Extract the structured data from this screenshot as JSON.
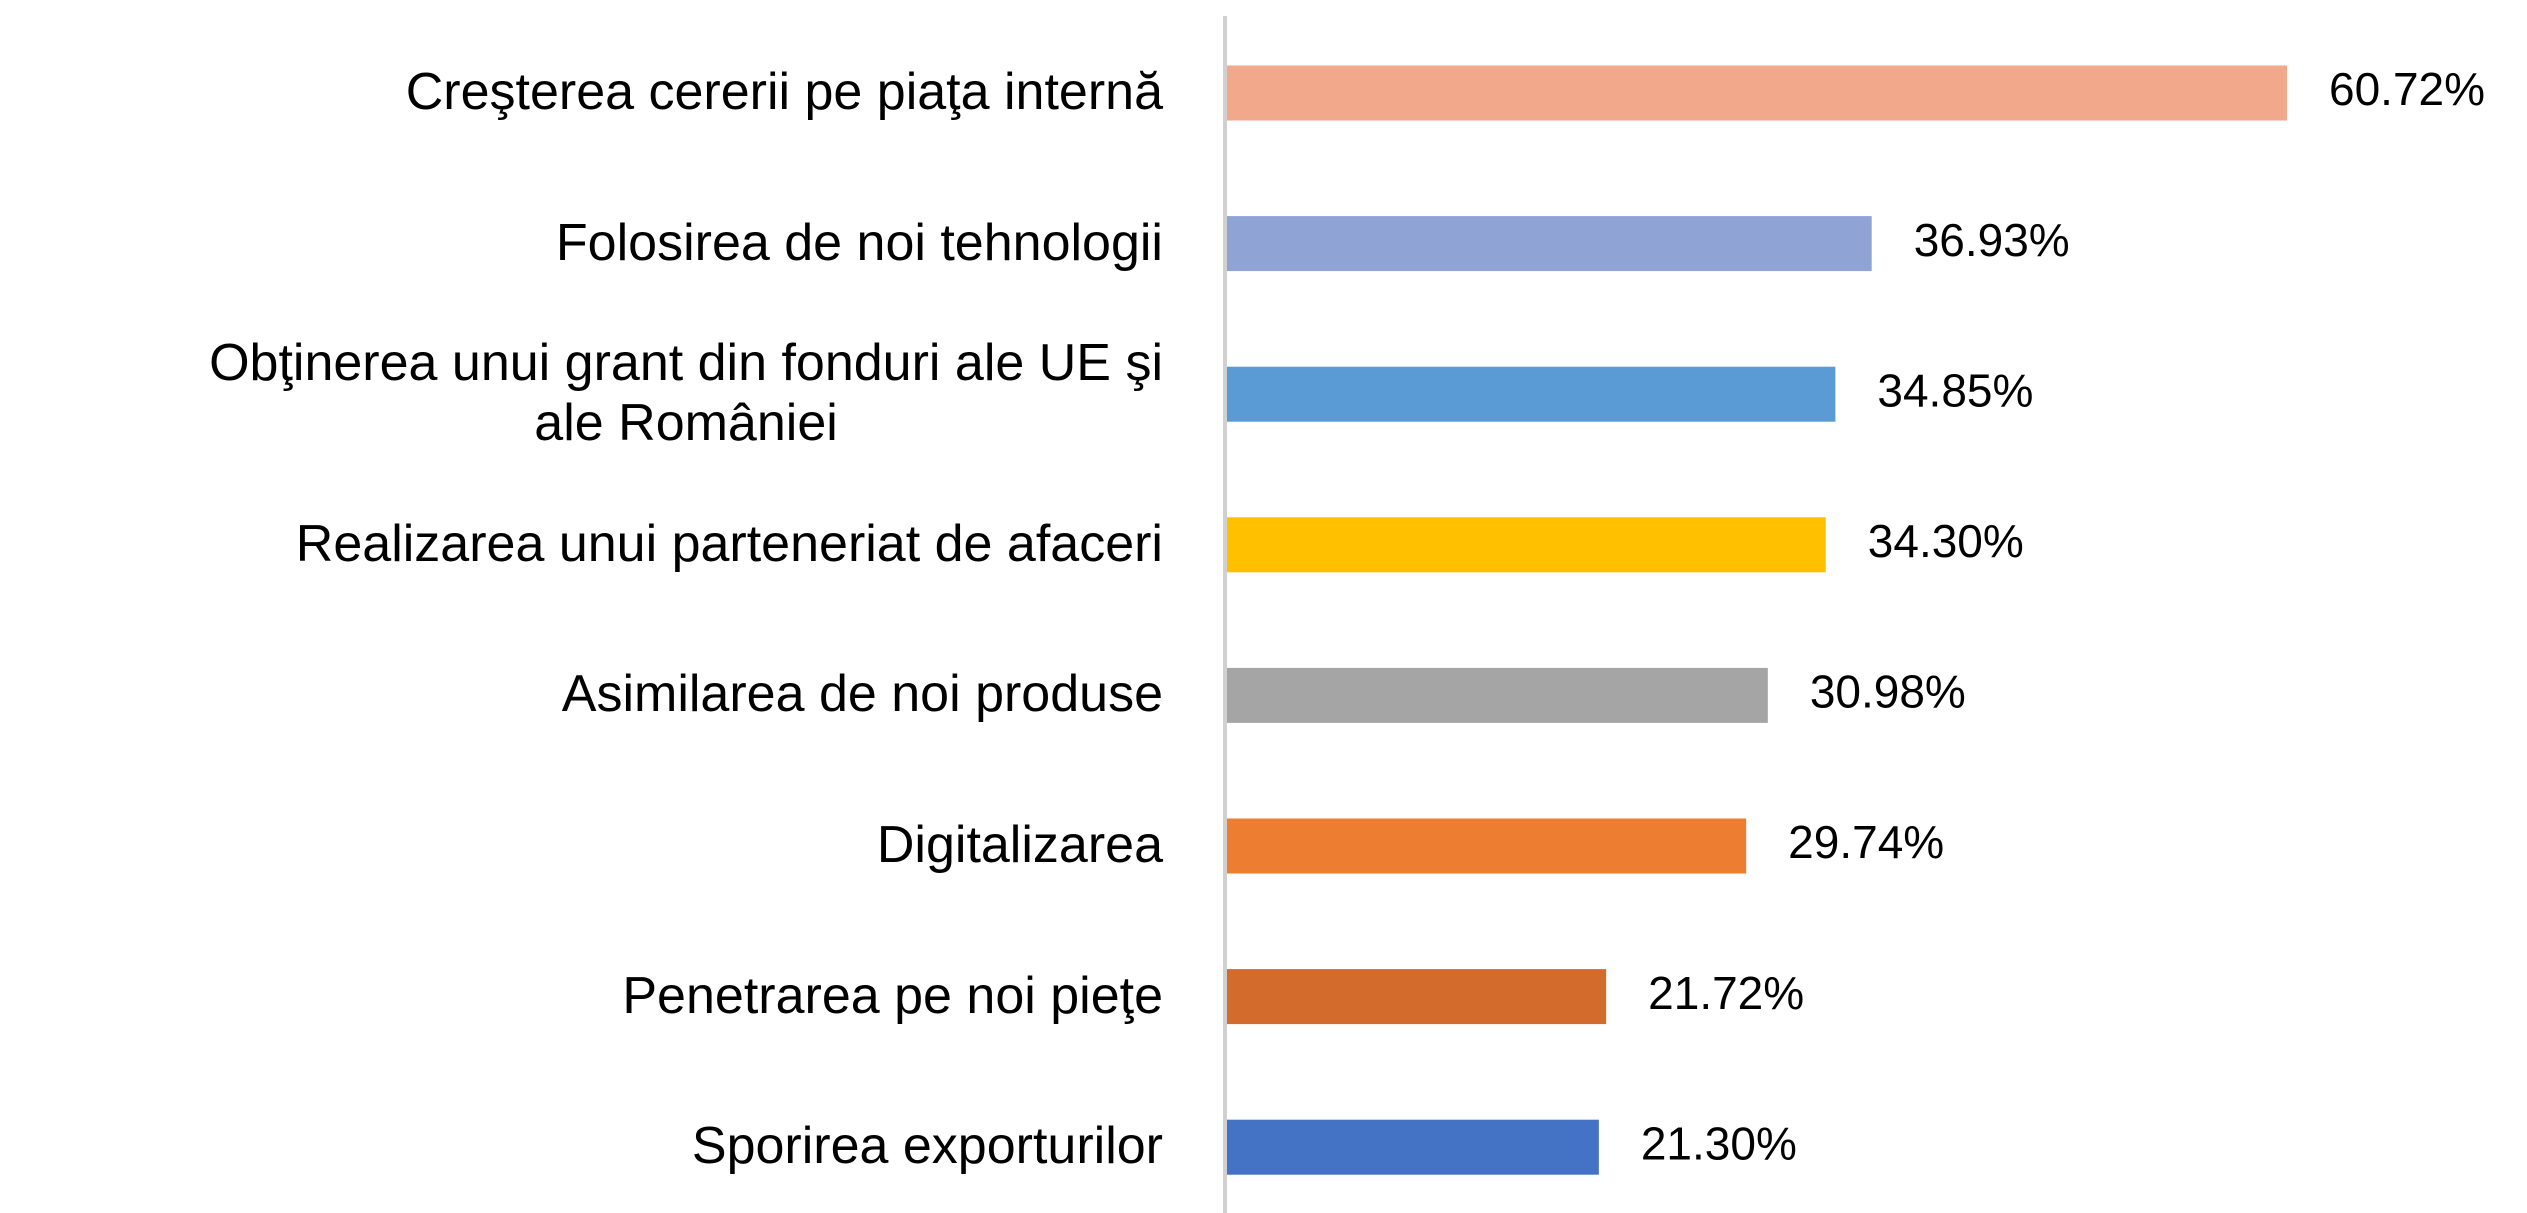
{
  "chart_data": {
    "type": "bar",
    "orientation": "horizontal",
    "categories": [
      "Creşterea cererii pe piaţa internă",
      "Folosirea de noi tehnologii",
      "Obţinerea unui grant din fonduri ale UE şi\nale României",
      "Realizarea unui parteneriat de afaceri",
      "Asimilarea de noi produse",
      "Digitalizarea",
      "Penetrarea pe noi pieţe",
      "Sporirea exporturilor"
    ],
    "values": [
      60.72,
      36.93,
      34.85,
      34.3,
      30.98,
      29.74,
      21.72,
      21.3
    ],
    "value_labels": [
      "60.72%",
      "36.93%",
      "34.85%",
      "34.30%",
      "30.98%",
      "29.74%",
      "21.72%",
      "21.30%"
    ],
    "colors": [
      "#F2A88B",
      "#8FA3D4",
      "#5B9BD5",
      "#FFC000",
      "#A5A5A5",
      "#ED7D31",
      "#D26B2B",
      "#4472C4"
    ]
  }
}
